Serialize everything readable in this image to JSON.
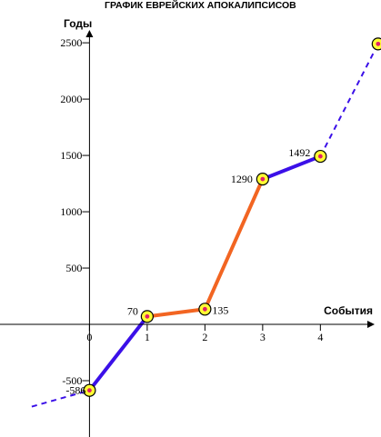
{
  "chart_data": {
    "type": "line",
    "title": "ГРАФИК ЕВРЕЙСКИХ АПОКАЛИПСИСОВ",
    "xlabel": "События",
    "ylabel": "Годы",
    "x_ticks": [
      "0",
      "1",
      "2",
      "3",
      "4"
    ],
    "y_ticks": [
      "-500",
      "500",
      "1000",
      "1500",
      "2000",
      "2500"
    ],
    "xlim": [
      -1.55,
      5.05
    ],
    "ylim": [
      -1000,
      2880
    ],
    "grid": false,
    "points": [
      {
        "x": 0,
        "y": -586,
        "label": "-586"
      },
      {
        "x": 1,
        "y": 70,
        "label": "70"
      },
      {
        "x": 2,
        "y": 135,
        "label": "135"
      },
      {
        "x": 3,
        "y": 1290,
        "label": "1290"
      },
      {
        "x": 4,
        "y": 1492,
        "label": "1492"
      },
      {
        "x": 5,
        "y": 2490,
        "label": ""
      }
    ],
    "segments": [
      {
        "from": 0,
        "to": 1,
        "color": "#3b10e8",
        "style": "solid"
      },
      {
        "from": 1,
        "to": 2,
        "color": "#f26522",
        "style": "solid"
      },
      {
        "from": 2,
        "to": 3,
        "color": "#f26522",
        "style": "solid"
      },
      {
        "from": 3,
        "to": 4,
        "color": "#3b10e8",
        "style": "solid"
      },
      {
        "from": 4,
        "to": 5,
        "color": "#3b10e8",
        "style": "dashed"
      }
    ],
    "lead_in": {
      "x": -1,
      "y": -730,
      "color": "#3b10e8",
      "style": "dashed"
    },
    "marker": {
      "outer_fill": "#ffff33",
      "outer_stroke": "#000000",
      "inner_fill": "#e0206a"
    }
  }
}
